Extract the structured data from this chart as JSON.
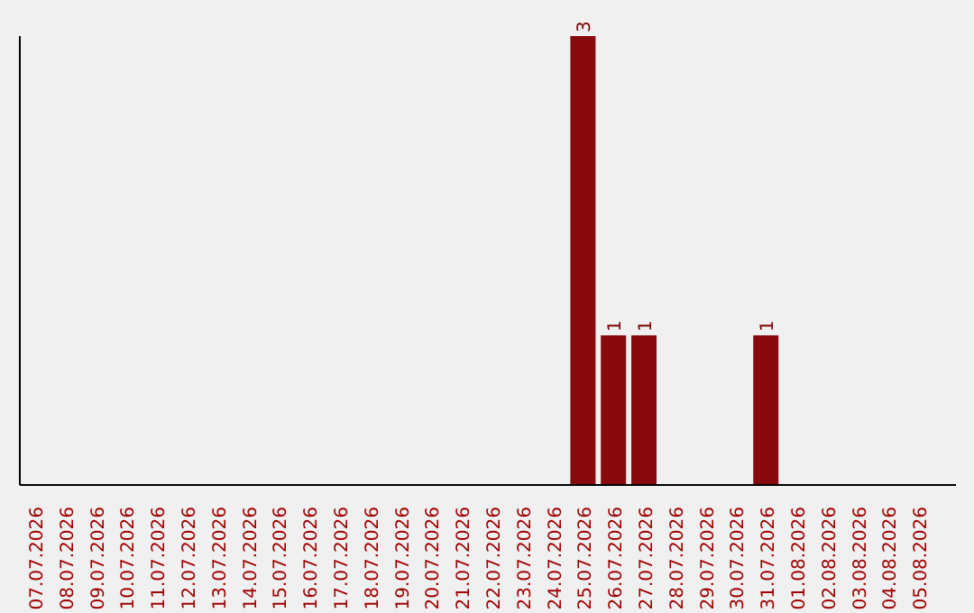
{
  "chart_data": {
    "type": "bar",
    "categories": [
      "07.07.2026",
      "08.07.2026",
      "09.07.2026",
      "10.07.2026",
      "11.07.2026",
      "12.07.2026",
      "13.07.2026",
      "14.07.2026",
      "15.07.2026",
      "16.07.2026",
      "17.07.2026",
      "18.07.2026",
      "19.07.2026",
      "20.07.2026",
      "21.07.2026",
      "22.07.2026",
      "23.07.2026",
      "24.07.2026",
      "25.07.2026",
      "26.07.2026",
      "27.07.2026",
      "28.07.2026",
      "29.07.2026",
      "30.07.2026",
      "31.07.2026",
      "01.08.2026",
      "02.08.2026",
      "03.08.2026",
      "04.08.2026",
      "05.08.2026"
    ],
    "values": [
      null,
      null,
      null,
      null,
      null,
      null,
      null,
      null,
      null,
      null,
      null,
      null,
      null,
      null,
      null,
      null,
      null,
      null,
      3,
      1,
      1,
      null,
      null,
      null,
      1,
      null,
      null,
      null,
      null,
      null
    ],
    "data_labels": true,
    "color": "#880a0e"
  }
}
